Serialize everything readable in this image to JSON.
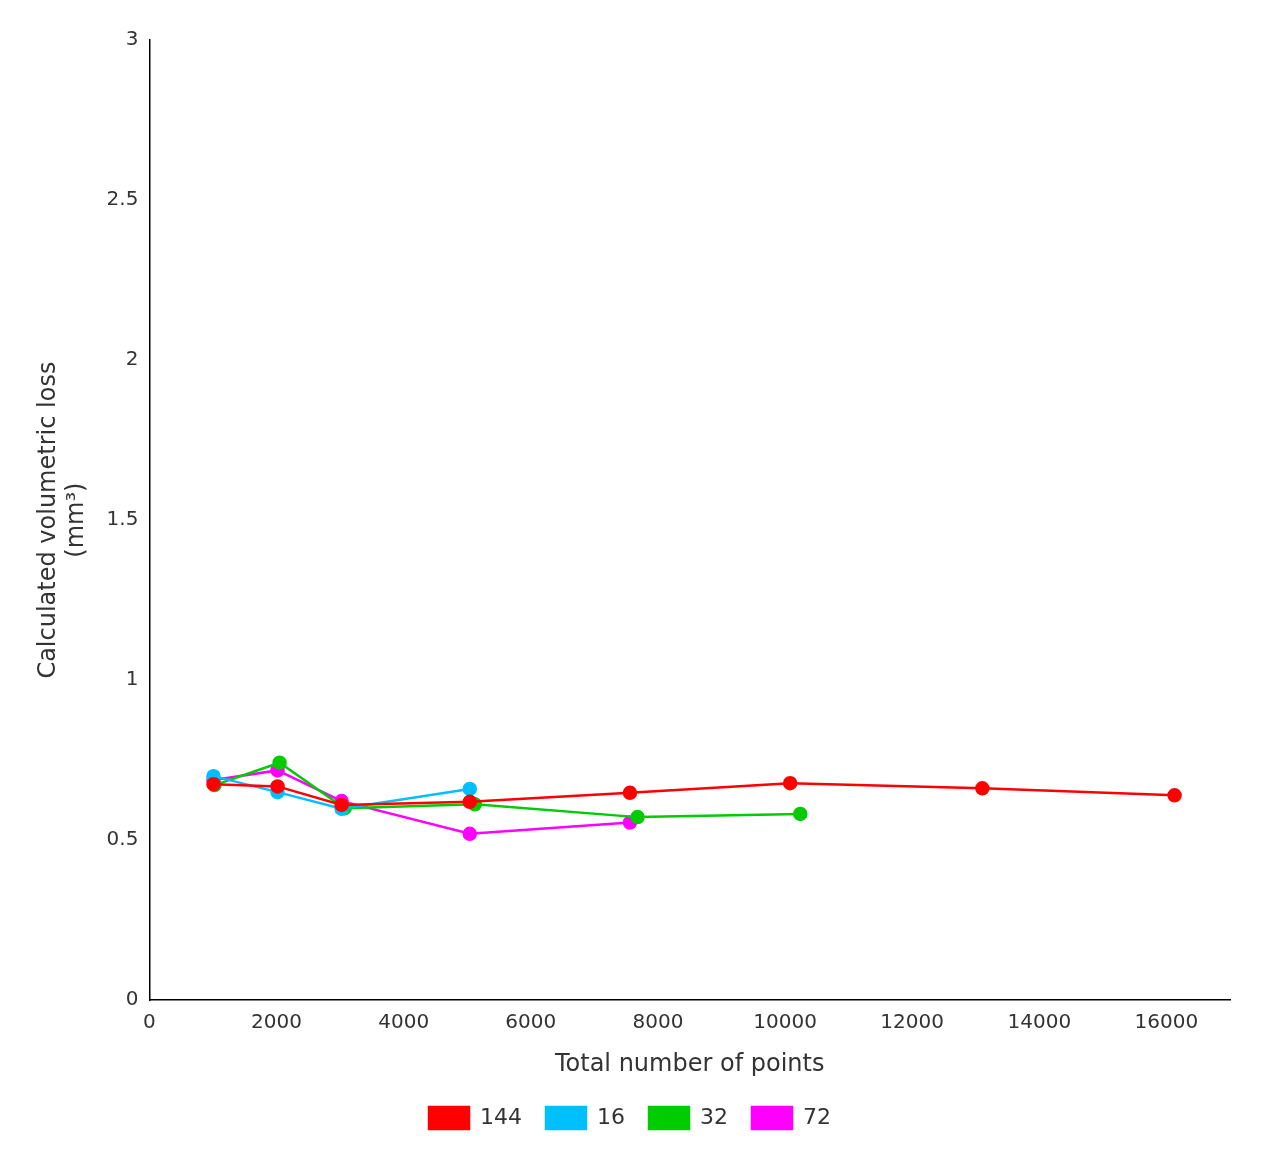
{
  "chart_data": {
    "type": "line",
    "xlabel": "Total number of points",
    "ylabel": "Calculated volumetric loss\n(mm³)",
    "series": [
      {
        "name": "144",
        "color": "#ff0000",
        "marker": "circle",
        "x": [
          1008,
          2016,
          3024,
          5040,
          7560,
          10080,
          13104,
          16128
        ],
        "values": [
          0.675,
          0.668,
          0.61,
          0.62,
          0.648,
          0.678,
          0.662,
          0.64
        ]
      },
      {
        "name": "16",
        "color": "#00bfff",
        "marker": "circle",
        "x": [
          1008,
          2016,
          3024,
          5040
        ],
        "values": [
          0.7,
          0.65,
          0.598,
          0.66
        ]
      },
      {
        "name": "32",
        "color": "#00cc00",
        "marker": "circle",
        "x": [
          1024,
          2048,
          3072,
          5120,
          7680,
          10240
        ],
        "values": [
          0.672,
          0.742,
          0.6,
          0.612,
          0.572,
          0.582
        ]
      },
      {
        "name": "72",
        "color": "#ff00ff",
        "marker": "circle",
        "x": [
          1008,
          2016,
          3024,
          5040,
          7560
        ],
        "values": [
          0.688,
          0.718,
          0.622,
          0.52,
          0.555
        ]
      }
    ],
    "xlim": [
      0,
      17000
    ],
    "ylim": [
      0,
      3.0
    ],
    "xticks": [
      0,
      2000,
      4000,
      6000,
      8000,
      10000,
      12000,
      14000,
      16000
    ],
    "yticks": [
      0,
      0.5,
      1.0,
      1.5,
      2.0,
      2.5,
      3.0
    ],
    "grid": false,
    "legend": "bottom"
  }
}
